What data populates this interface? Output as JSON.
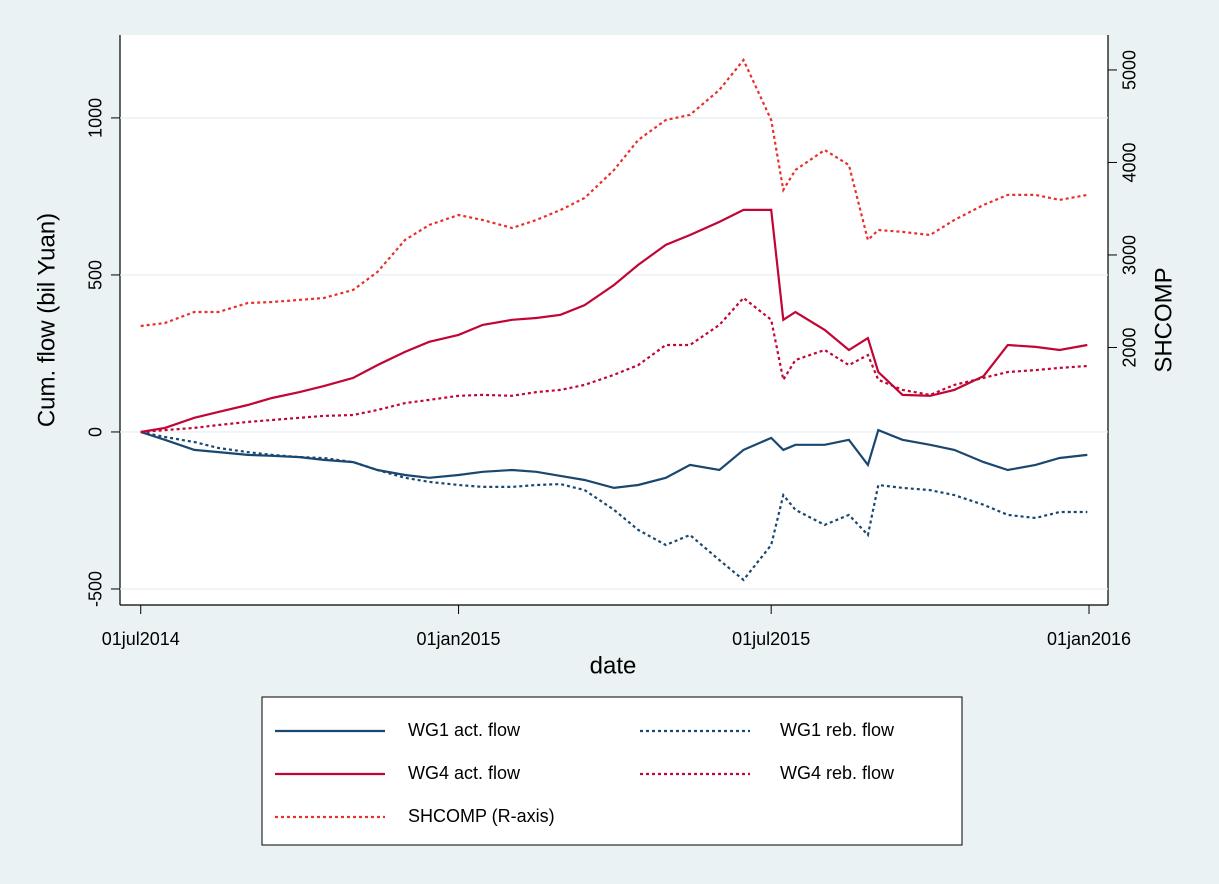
{
  "chart_data": {
    "type": "line",
    "x_label": "date",
    "y_label": "Cum. flow (bil Yuan)",
    "y2_label": "SHCOMP",
    "x": [
      "2014-07-01",
      "2014-07-15",
      "2014-08-01",
      "2014-08-15",
      "2014-09-01",
      "2014-09-15",
      "2014-10-01",
      "2014-10-15",
      "2014-11-01",
      "2014-11-15",
      "2014-12-01",
      "2014-12-15",
      "2015-01-01",
      "2015-01-15",
      "2015-02-01",
      "2015-02-15",
      "2015-03-01",
      "2015-03-15",
      "2015-04-01",
      "2015-04-15",
      "2015-05-01",
      "2015-05-15",
      "2015-06-01",
      "2015-06-15",
      "2015-07-01",
      "2015-07-08",
      "2015-07-15",
      "2015-08-01",
      "2015-08-15",
      "2015-08-26",
      "2015-09-01",
      "2015-09-15",
      "2015-10-01",
      "2015-10-15",
      "2015-11-01",
      "2015-11-15",
      "2015-12-01",
      "2015-12-15",
      "2015-12-31"
    ],
    "xlim": [
      "2014-06-19",
      "2016-01-12"
    ],
    "xticks": [
      {
        "value": "2014-07-01",
        "label": "01jul2014"
      },
      {
        "value": "2015-01-01",
        "label": "01jan2015"
      },
      {
        "value": "2015-07-01",
        "label": "01jul2015"
      },
      {
        "value": "2016-01-01",
        "label": "01jan2016"
      }
    ],
    "ylim": [
      -551,
      1264
    ],
    "yticks": [
      -500,
      0,
      500,
      1000
    ],
    "y2lim": [
      -784,
      5378
    ],
    "y2ticks": [
      2000,
      3000,
      4000,
      5000
    ],
    "grid": true,
    "series": [
      {
        "name": "WG1 act. flow",
        "color": "#1a476f",
        "line_style": "solid",
        "values": [
          0,
          -25,
          -57,
          -64,
          -73,
          -76,
          -80,
          -89,
          -96,
          -121,
          -137,
          -146,
          -137,
          -127,
          -121,
          -127,
          -140,
          -153,
          -178,
          -169,
          -146,
          -105,
          -121,
          -57,
          -19,
          -57,
          -41,
          -41,
          -25,
          -105,
          6,
          -25,
          -41,
          -57,
          -96,
          -121,
          -105,
          -83,
          -73
        ]
      },
      {
        "name": "WG1 reb. flow",
        "color": "#1a476f",
        "line_style": "dotted",
        "values": [
          0,
          -16,
          -32,
          -51,
          -64,
          -73,
          -80,
          -83,
          -96,
          -121,
          -146,
          -159,
          -169,
          -175,
          -175,
          -169,
          -166,
          -185,
          -248,
          -312,
          -360,
          -328,
          -408,
          -471,
          -360,
          -201,
          -248,
          -296,
          -264,
          -328,
          -169,
          -178,
          -185,
          -201,
          -232,
          -264,
          -274,
          -255,
          -255
        ]
      },
      {
        "name": "WG4 act. flow",
        "color": "#c10534",
        "line_style": "solid",
        "values": [
          0,
          13,
          45,
          64,
          86,
          108,
          127,
          146,
          172,
          213,
          255,
          287,
          309,
          341,
          357,
          363,
          373,
          404,
          468,
          532,
          596,
          627,
          669,
          707,
          707,
          357,
          382,
          325,
          261,
          299,
          191,
          118,
          115,
          134,
          178,
          277,
          271,
          261,
          277
        ]
      },
      {
        "name": "WG4 reb. flow",
        "color": "#c10534",
        "line_style": "dotted",
        "values": [
          0,
          6,
          13,
          22,
          32,
          38,
          45,
          51,
          54,
          70,
          92,
          102,
          115,
          118,
          115,
          127,
          134,
          150,
          182,
          213,
          277,
          277,
          341,
          427,
          357,
          166,
          229,
          261,
          213,
          245,
          166,
          134,
          118,
          150,
          172,
          191,
          197,
          204,
          210
        ]
      },
      {
        "name": "SHCOMP (R-axis)",
        "color": "#e8302a",
        "line_style": "dotted",
        "axis": "y2",
        "values": [
          2232,
          2265,
          2384,
          2384,
          2481,
          2492,
          2514,
          2535,
          2622,
          2816,
          3162,
          3324,
          3432,
          3378,
          3292,
          3378,
          3486,
          3616,
          3919,
          4243,
          4459,
          4514,
          4784,
          5108,
          4459,
          3703,
          3919,
          4135,
          3973,
          3162,
          3270,
          3249,
          3216,
          3378,
          3541,
          3649,
          3649,
          3595,
          3649
        ]
      }
    ]
  }
}
